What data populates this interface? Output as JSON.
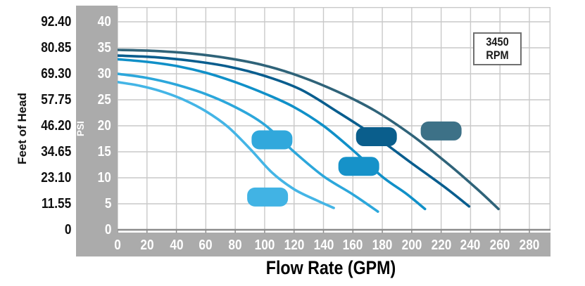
{
  "annotation_box": {
    "line1": "3450",
    "line2": "RPM"
  },
  "axes": {
    "x_label": "Flow Rate (GPM)",
    "left_label": "Feet of Head",
    "inner_label": "PSI",
    "feet_tick_labels": [
      "92.40",
      "80.85",
      "69.30",
      "57.75",
      "46.20",
      "34.65",
      "23.10",
      "11.55",
      "0"
    ],
    "psi_tick_labels": [
      "40",
      "35",
      "30",
      "25",
      "20",
      "15",
      "10",
      "5",
      "0"
    ],
    "x_tick_labels": [
      "0",
      "20",
      "40",
      "60",
      "80",
      "100",
      "120",
      "140",
      "160",
      "180",
      "200",
      "220",
      "240",
      "260",
      "280"
    ]
  },
  "colors": {
    "band": "#ababab",
    "grid": "#c9c9c9",
    "axis_line": "#8c8c8c",
    "plot_bg": "#ffffff",
    "text_dark": "#111111",
    "text_light": "#ffffff",
    "rpm_border": "#707070"
  },
  "chart_data": {
    "type": "line",
    "title": "",
    "xlabel": "Flow Rate (GPM)",
    "ylabel_left": "Feet of Head",
    "ylabel_right": "PSI",
    "annotation": "3450 RPM",
    "annotation_lines": [
      "3450",
      "RPM"
    ],
    "x_ticks": [
      0,
      20,
      40,
      60,
      80,
      100,
      120,
      140,
      160,
      180,
      200,
      220,
      240,
      260,
      280
    ],
    "psi_ticks": [
      0,
      5,
      10,
      15,
      20,
      25,
      30,
      35,
      40
    ],
    "feet_ticks": [
      0,
      11.55,
      23.1,
      34.65,
      46.2,
      57.75,
      69.3,
      80.85,
      92.4
    ],
    "x_range": [
      0,
      294
    ],
    "psi_range": [
      0,
      42.8
    ],
    "grid": true,
    "legend": "none",
    "series": [
      {
        "name": "curve-1-light-blue",
        "color": "#44b5e6",
        "points": [
          [
            0,
            28.4
          ],
          [
            15,
            27.7
          ],
          [
            30,
            26.6
          ],
          [
            45,
            25.0
          ],
          [
            60,
            22.8
          ],
          [
            75,
            19.8
          ],
          [
            90,
            15.6
          ],
          [
            105,
            11.0
          ],
          [
            120,
            7.8
          ],
          [
            135,
            5.7
          ],
          [
            147,
            4.2
          ]
        ]
      },
      {
        "name": "curve-2-sky-blue",
        "color": "#2ca7db",
        "points": [
          [
            0,
            30.0
          ],
          [
            20,
            29.2
          ],
          [
            40,
            27.9
          ],
          [
            60,
            26.1
          ],
          [
            80,
            23.6
          ],
          [
            100,
            20.2
          ],
          [
            120,
            15.0
          ],
          [
            140,
            10.3
          ],
          [
            160,
            6.8
          ],
          [
            177,
            3.5
          ]
        ]
      },
      {
        "name": "curve-3-medium-blue",
        "color": "#1090c8",
        "points": [
          [
            0,
            32.8
          ],
          [
            20,
            32.3
          ],
          [
            40,
            31.5
          ],
          [
            60,
            30.2
          ],
          [
            80,
            28.4
          ],
          [
            100,
            26.2
          ],
          [
            120,
            23.6
          ],
          [
            140,
            20.0
          ],
          [
            160,
            15.3
          ],
          [
            180,
            10.2
          ],
          [
            196,
            7.0
          ],
          [
            209,
            4.0
          ]
        ]
      },
      {
        "name": "curve-4-navy-blue",
        "color": "#085d8e",
        "points": [
          [
            0,
            33.5
          ],
          [
            25,
            33.2
          ],
          [
            50,
            32.5
          ],
          [
            75,
            31.4
          ],
          [
            100,
            29.6
          ],
          [
            125,
            26.9
          ],
          [
            150,
            22.6
          ],
          [
            175,
            18.0
          ],
          [
            200,
            12.8
          ],
          [
            222,
            8.3
          ],
          [
            239,
            4.5
          ]
        ]
      },
      {
        "name": "curve-5-slate-blue",
        "color": "#2f6379",
        "points": [
          [
            0,
            34.6
          ],
          [
            25,
            34.4
          ],
          [
            50,
            33.9
          ],
          [
            75,
            33.0
          ],
          [
            100,
            31.6
          ],
          [
            125,
            29.4
          ],
          [
            150,
            26.5
          ],
          [
            175,
            22.9
          ],
          [
            200,
            18.2
          ],
          [
            225,
            12.6
          ],
          [
            245,
            7.7
          ],
          [
            259,
            4.0
          ]
        ]
      }
    ],
    "markers": [
      {
        "name": "pill-light-blue",
        "color": "#41b3e4",
        "gpm": 102,
        "psi": 6.3
      },
      {
        "name": "pill-sky-blue",
        "color": "#31a8dc",
        "gpm": 105,
        "psi": 17.3
      },
      {
        "name": "pill-medium-blue",
        "color": "#1692c9",
        "gpm": 164,
        "psi": 12.2
      },
      {
        "name": "pill-navy-blue",
        "color": "#0a5e8c",
        "gpm": 176,
        "psi": 17.9
      },
      {
        "name": "pill-slate-blue",
        "color": "#3d7187",
        "gpm": 220,
        "psi": 19.0
      }
    ]
  }
}
